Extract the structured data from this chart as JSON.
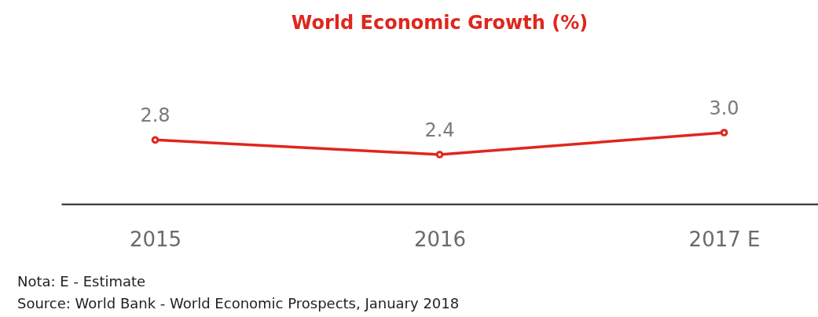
{
  "chart_data": {
    "type": "line",
    "title": "World Economic Growth (%)",
    "categories": [
      "2015",
      "2016",
      "2017 E"
    ],
    "series": [
      {
        "color": "#e0261d",
        "values": [
          2.8,
          2.4,
          3.0
        ],
        "value_labels": [
          "2.8",
          "2.4",
          "3.0"
        ]
      }
    ],
    "marker": "circle",
    "line_style": "solid",
    "grid": false,
    "annotations": [
      "Nota: E - Estimate",
      "Source: World Bank - World Economic Prospects, January 2018"
    ]
  }
}
